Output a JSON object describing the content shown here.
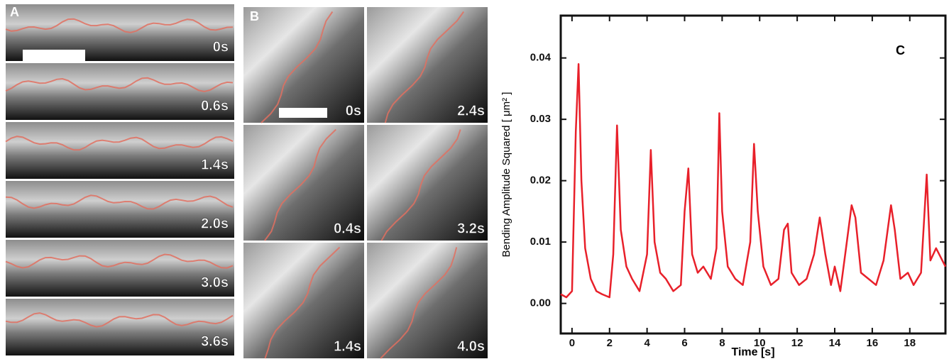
{
  "panel_a": {
    "label": "A",
    "frames": [
      "0s",
      "0.6s",
      "1.4s",
      "2.0s",
      "3.0s",
      "3.6s"
    ]
  },
  "panel_b": {
    "label": "B",
    "frames": [
      "0s",
      "0.4s",
      "1.4s",
      "2.4s",
      "3.2s",
      "4.0s"
    ]
  },
  "chart_data": {
    "type": "line",
    "panel_label": "C",
    "x_label": "Time [s]",
    "y_label": "Bending Amplitude Squared [ μm² ]",
    "xlim": [
      -0.6,
      19.9
    ],
    "ylim": [
      -0.0049,
      0.0469
    ],
    "xticks": [
      0,
      2,
      4,
      6,
      8,
      10,
      12,
      14,
      16,
      18
    ],
    "yticks": [
      {
        "value": 0,
        "label": "0.00"
      },
      0.01,
      0.02,
      0.03,
      0.04
    ],
    "series": [
      {
        "color": "#e8202a",
        "x": [
          -0.6,
          -0.3,
          0,
          0.2,
          0.35,
          0.5,
          0.7,
          1.0,
          1.3,
          1.6,
          2.0,
          2.2,
          2.4,
          2.6,
          2.9,
          3.2,
          3.6,
          4.0,
          4.2,
          4.4,
          4.7,
          5.0,
          5.4,
          5.8,
          6.0,
          6.2,
          6.4,
          6.7,
          7.0,
          7.4,
          7.7,
          7.85,
          8.0,
          8.3,
          8.7,
          9.1,
          9.5,
          9.7,
          9.9,
          10.2,
          10.6,
          11.0,
          11.3,
          11.5,
          11.7,
          12.1,
          12.5,
          12.9,
          13.2,
          13.5,
          13.8,
          14.0,
          14.3,
          14.6,
          14.9,
          15.1,
          15.4,
          15.8,
          16.2,
          16.6,
          17.0,
          17.2,
          17.5,
          17.9,
          18.2,
          18.6,
          18.9,
          19.1,
          19.4,
          19.9
        ],
        "values": [
          0.0015,
          0.001,
          0.002,
          0.028,
          0.039,
          0.02,
          0.009,
          0.004,
          0.002,
          0.0015,
          0.001,
          0.008,
          0.029,
          0.012,
          0.006,
          0.004,
          0.002,
          0.008,
          0.025,
          0.01,
          0.005,
          0.004,
          0.002,
          0.003,
          0.015,
          0.022,
          0.008,
          0.005,
          0.006,
          0.004,
          0.009,
          0.031,
          0.015,
          0.006,
          0.004,
          0.003,
          0.01,
          0.026,
          0.015,
          0.006,
          0.003,
          0.004,
          0.012,
          0.013,
          0.005,
          0.003,
          0.004,
          0.008,
          0.014,
          0.008,
          0.003,
          0.006,
          0.002,
          0.009,
          0.016,
          0.014,
          0.005,
          0.004,
          0.003,
          0.007,
          0.016,
          0.012,
          0.004,
          0.005,
          0.003,
          0.005,
          0.021,
          0.007,
          0.009,
          0.006
        ]
      }
    ]
  }
}
